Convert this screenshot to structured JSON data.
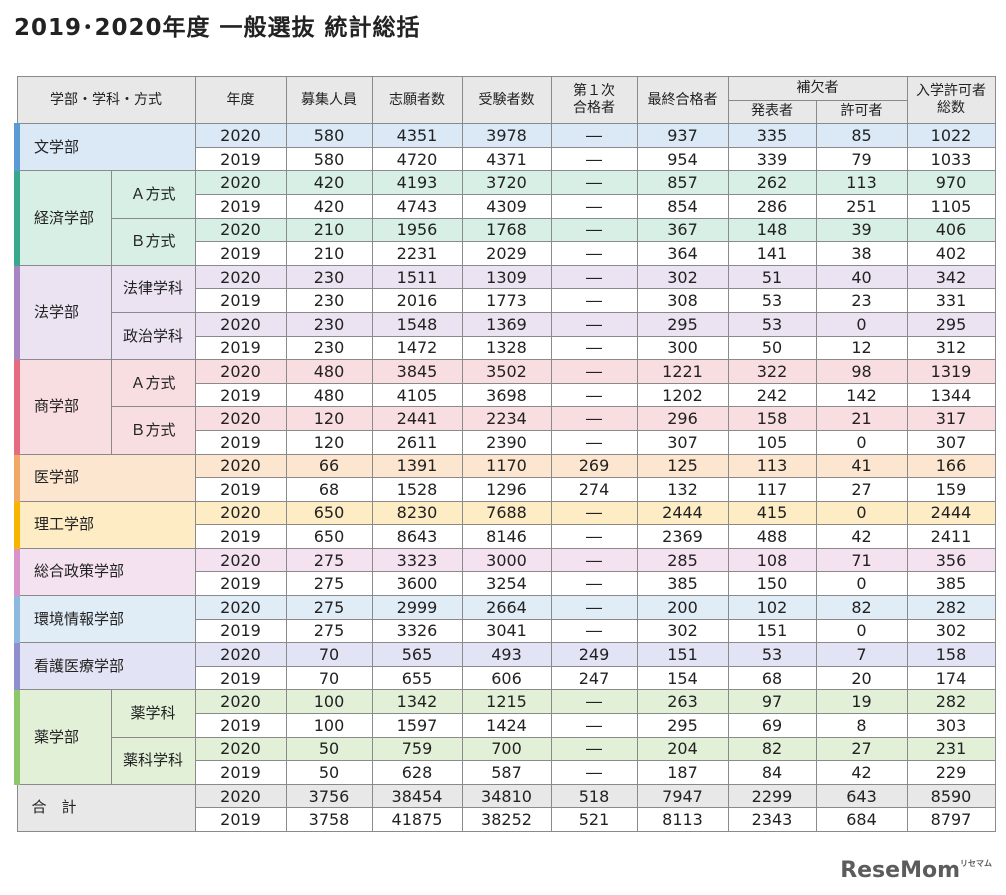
{
  "title": "2019･2020年度 一般選抜 統計総括",
  "header": {
    "faculty": "学部・学科・方式",
    "year": "年度",
    "quota": "募集人員",
    "applicants": "志願者数",
    "examinees": "受験者数",
    "first_pass_line1": "第１次",
    "first_pass_line2": "合格者",
    "final_pass": "最終合格者",
    "waitlist": "補欠者",
    "waitlist_announced": "発表者",
    "waitlist_permitted": "許可者",
    "admit_line1": "入学許可者",
    "admit_line2": "総数"
  },
  "groups": [
    {
      "label": "文学部",
      "color": "#5b9bd5",
      "bg": "#dbe8f6",
      "subs": [
        {
          "label": "",
          "rows": [
            [
              "2020",
              "580",
              "4351",
              "3978",
              "―",
              "937",
              "335",
              "85",
              "1022"
            ],
            [
              "2019",
              "580",
              "4720",
              "4371",
              "―",
              "954",
              "339",
              "79",
              "1033"
            ]
          ]
        }
      ]
    },
    {
      "label": "経済学部",
      "color": "#3aa88c",
      "bg": "#d8efe6",
      "subs": [
        {
          "label": "Ａ方式",
          "rows": [
            [
              "2020",
              "420",
              "4193",
              "3720",
              "―",
              "857",
              "262",
              "113",
              "970"
            ],
            [
              "2019",
              "420",
              "4743",
              "4309",
              "―",
              "854",
              "286",
              "251",
              "1105"
            ]
          ]
        },
        {
          "label": "Ｂ方式",
          "rows": [
            [
              "2020",
              "210",
              "1956",
              "1768",
              "―",
              "367",
              "148",
              "39",
              "406"
            ],
            [
              "2019",
              "210",
              "2231",
              "2029",
              "―",
              "364",
              "141",
              "38",
              "402"
            ]
          ]
        }
      ]
    },
    {
      "label": "法学部",
      "color": "#a784c2",
      "bg": "#ebe3f1",
      "subs": [
        {
          "label": "法律学科",
          "rows": [
            [
              "2020",
              "230",
              "1511",
              "1309",
              "―",
              "302",
              "51",
              "40",
              "342"
            ],
            [
              "2019",
              "230",
              "2016",
              "1773",
              "―",
              "308",
              "53",
              "23",
              "331"
            ]
          ]
        },
        {
          "label": "政治学科",
          "rows": [
            [
              "2020",
              "230",
              "1548",
              "1369",
              "―",
              "295",
              "53",
              "0",
              "295"
            ],
            [
              "2019",
              "230",
              "1472",
              "1328",
              "―",
              "300",
              "50",
              "12",
              "312"
            ]
          ]
        }
      ]
    },
    {
      "label": "商学部",
      "color": "#e46b80",
      "bg": "#f8dde1",
      "subs": [
        {
          "label": "Ａ方式",
          "rows": [
            [
              "2020",
              "480",
              "3845",
              "3502",
              "―",
              "1221",
              "322",
              "98",
              "1319"
            ],
            [
              "2019",
              "480",
              "4105",
              "3698",
              "―",
              "1202",
              "242",
              "142",
              "1344"
            ]
          ]
        },
        {
          "label": "Ｂ方式",
          "rows": [
            [
              "2020",
              "120",
              "2441",
              "2234",
              "―",
              "296",
              "158",
              "21",
              "317"
            ],
            [
              "2019",
              "120",
              "2611",
              "2390",
              "―",
              "307",
              "105",
              "0",
              "307"
            ]
          ]
        }
      ]
    },
    {
      "label": "医学部",
      "color": "#f0a866",
      "bg": "#fde6cf",
      "subs": [
        {
          "label": "",
          "rows": [
            [
              "2020",
              "66",
              "1391",
              "1170",
              "269",
              "125",
              "113",
              "41",
              "166"
            ],
            [
              "2019",
              "68",
              "1528",
              "1296",
              "274",
              "132",
              "117",
              "27",
              "159"
            ]
          ]
        }
      ]
    },
    {
      "label": "理工学部",
      "color": "#f7b500",
      "bg": "#fdecc4",
      "subs": [
        {
          "label": "",
          "rows": [
            [
              "2020",
              "650",
              "8230",
              "7688",
              "―",
              "2444",
              "415",
              "0",
              "2444"
            ],
            [
              "2019",
              "650",
              "8643",
              "8146",
              "―",
              "2369",
              "488",
              "42",
              "2411"
            ]
          ]
        }
      ]
    },
    {
      "label": "総合政策学部",
      "color": "#d993c9",
      "bg": "#f5e2f0",
      "subs": [
        {
          "label": "",
          "rows": [
            [
              "2020",
              "275",
              "3323",
              "3000",
              "―",
              "285",
              "108",
              "71",
              "356"
            ],
            [
              "2019",
              "275",
              "3600",
              "3254",
              "―",
              "385",
              "150",
              "0",
              "385"
            ]
          ]
        }
      ]
    },
    {
      "label": "環境情報学部",
      "color": "#8cb9dd",
      "bg": "#e0ecf6",
      "subs": [
        {
          "label": "",
          "rows": [
            [
              "2020",
              "275",
              "2999",
              "2664",
              "―",
              "200",
              "102",
              "82",
              "282"
            ],
            [
              "2019",
              "275",
              "3326",
              "3041",
              "―",
              "302",
              "151",
              "0",
              "302"
            ]
          ]
        }
      ]
    },
    {
      "label": "看護医療学部",
      "color": "#8f8fd0",
      "bg": "#e2e3f4",
      "subs": [
        {
          "label": "",
          "rows": [
            [
              "2020",
              "70",
              "565",
              "493",
              "249",
              "151",
              "53",
              "7",
              "158"
            ],
            [
              "2019",
              "70",
              "655",
              "606",
              "247",
              "154",
              "68",
              "20",
              "174"
            ]
          ]
        }
      ]
    },
    {
      "label": "薬学部",
      "color": "#8cc86a",
      "bg": "#e3f0d8",
      "subs": [
        {
          "label": "薬学科",
          "rows": [
            [
              "2020",
              "100",
              "1342",
              "1215",
              "―",
              "263",
              "97",
              "19",
              "282"
            ],
            [
              "2019",
              "100",
              "1597",
              "1424",
              "―",
              "295",
              "69",
              "8",
              "303"
            ]
          ]
        },
        {
          "label": "薬科学科",
          "rows": [
            [
              "2020",
              "50",
              "759",
              "700",
              "―",
              "204",
              "82",
              "27",
              "231"
            ],
            [
              "2019",
              "50",
              "628",
              "587",
              "―",
              "187",
              "84",
              "42",
              "229"
            ]
          ]
        }
      ]
    },
    {
      "label": "合　計",
      "color": "",
      "bg": "#e8e8e8",
      "subs": [
        {
          "label": "",
          "rows": [
            [
              "2020",
              "3756",
              "38454",
              "34810",
              "518",
              "7947",
              "2299",
              "643",
              "8590"
            ],
            [
              "2019",
              "3758",
              "41875",
              "38252",
              "521",
              "8113",
              "2343",
              "684",
              "8797"
            ]
          ]
        }
      ]
    }
  ],
  "watermark": "ReseMom",
  "watermark_small": "リセマム"
}
